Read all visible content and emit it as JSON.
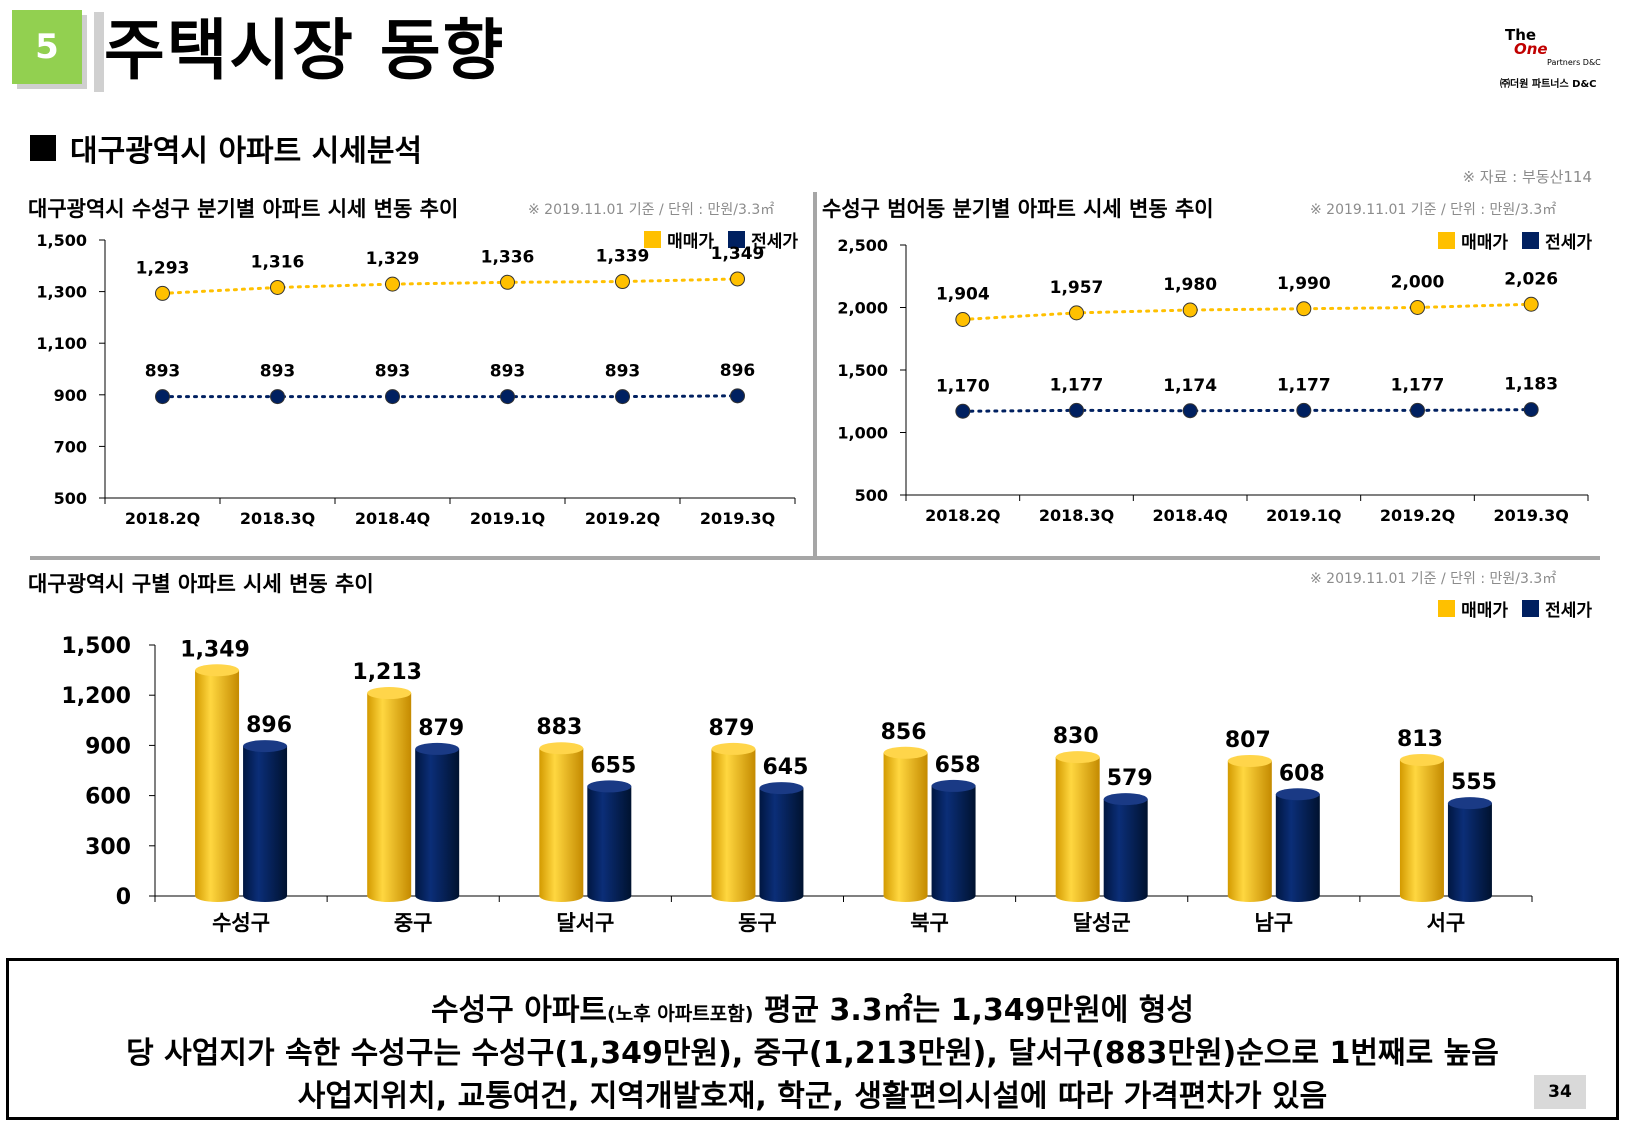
{
  "header": {
    "section_number": "5",
    "title": "주택시장 동향",
    "logo_the": "The",
    "logo_one": "One",
    "logo_partners": "Partners D&C",
    "logo_company": "㈜더원 파트너스 D&C"
  },
  "subtitle": "대구광역시 아파트 시세분석",
  "source": "※ 자료 : 부동산114",
  "legend": {
    "sale": "매매가",
    "jeonse": "전세가"
  },
  "colors": {
    "sale": "#ffc000",
    "jeonse": "#002060",
    "badge": "#92d050"
  },
  "chart_data": [
    {
      "type": "line",
      "title": "대구광역시 수성구 분기별 아파트 시세 변동 추이",
      "note": "※ 2019.11.01 기준 / 단위 : 만원/3.3㎡",
      "x": [
        "2018.2Q",
        "2018.3Q",
        "2018.4Q",
        "2019.1Q",
        "2019.2Q",
        "2019.3Q"
      ],
      "series": [
        {
          "name": "매매가",
          "values": [
            1293,
            1316,
            1329,
            1336,
            1339,
            1349
          ],
          "labels": [
            "1,293",
            "1,316",
            "1,329",
            "1,336",
            "1,339",
            "1,349"
          ]
        },
        {
          "name": "전세가",
          "values": [
            893,
            893,
            893,
            893,
            893,
            896
          ],
          "labels": [
            "893",
            "893",
            "893",
            "893",
            "893",
            "896"
          ]
        }
      ],
      "ylim": [
        500,
        1500
      ],
      "yticks": [
        500,
        700,
        900,
        1100,
        1300,
        1500
      ],
      "ytick_labels": [
        "500",
        "700",
        "900",
        "1,100",
        "1,300",
        "1,500"
      ],
      "grid": false,
      "legend": "top-right"
    },
    {
      "type": "line",
      "title": "수성구 범어동 분기별 아파트 시세 변동 추이",
      "note": "※ 2019.11.01 기준 / 단위 : 만원/3.3㎡",
      "x": [
        "2018.2Q",
        "2018.3Q",
        "2018.4Q",
        "2019.1Q",
        "2019.2Q",
        "2019.3Q"
      ],
      "series": [
        {
          "name": "매매가",
          "values": [
            1904,
            1957,
            1980,
            1990,
            2000,
            2026
          ],
          "labels": [
            "1,904",
            "1,957",
            "1,980",
            "1,990",
            "2,000",
            "2,026"
          ]
        },
        {
          "name": "전세가",
          "values": [
            1170,
            1177,
            1174,
            1177,
            1177,
            1183
          ],
          "labels": [
            "1,170",
            "1,177",
            "1,174",
            "1,177",
            "1,177",
            "1,183"
          ]
        }
      ],
      "ylim": [
        500,
        2500
      ],
      "yticks": [
        500,
        1000,
        1500,
        2000,
        2500
      ],
      "ytick_labels": [
        "500",
        "1,000",
        "1,500",
        "2,000",
        "2,500"
      ],
      "grid": false,
      "legend": "top-right"
    },
    {
      "type": "bar",
      "title": "대구광역시 구별 아파트 시세 변동 추이",
      "note": "※ 2019.11.01 기준 / 단위 : 만원/3.3㎡",
      "categories": [
        "수성구",
        "중구",
        "달서구",
        "동구",
        "북구",
        "달성군",
        "남구",
        "서구"
      ],
      "series": [
        {
          "name": "매매가",
          "values": [
            1349,
            1213,
            883,
            879,
            856,
            830,
            807,
            813
          ],
          "labels": [
            "1,349",
            "1,213",
            "883",
            "879",
            "856",
            "830",
            "807",
            "813"
          ]
        },
        {
          "name": "전세가",
          "values": [
            896,
            879,
            655,
            645,
            658,
            579,
            608,
            555
          ],
          "labels": [
            "896",
            "879",
            "655",
            "645",
            "658",
            "579",
            "608",
            "555"
          ]
        }
      ],
      "ylim": [
        0,
        1500
      ],
      "yticks": [
        0,
        300,
        600,
        900,
        1200,
        1500
      ],
      "ytick_labels": [
        "0",
        "300",
        "600",
        "900",
        "1,200",
        "1,500"
      ],
      "grid": false,
      "legend": "top-right"
    }
  ],
  "summary": {
    "line1_a": "수성구 아파트",
    "line1_small": "(노후 아파트포함)",
    "line1_b": " 평균 3.3㎡는 1,349만원에 형성",
    "line2": "당 사업지가 속한 수성구는 수성구(1,349만원), 중구(1,213만원), 달서구(883만원)순으로 1번째로 높음",
    "line3": "사업지위치, 교통여건, 지역개발호재, 학군, 생활편의시설에 따라 가격편차가 있음"
  },
  "page_number": "34"
}
